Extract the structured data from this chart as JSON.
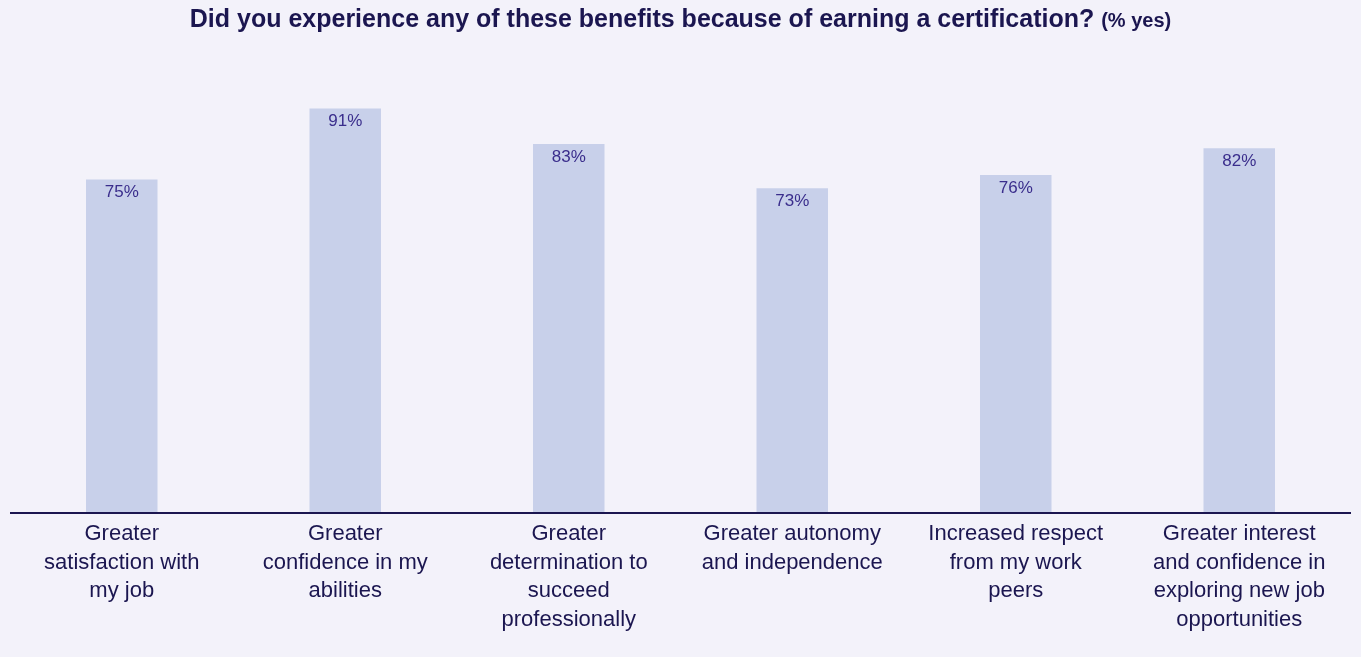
{
  "chart_data": {
    "type": "bar",
    "title": "Did you experience any of these benefits because of earning a certification?",
    "subtitle": "(% yes)",
    "categories": [
      "Greater satisfaction with my job",
      "Greater confidence in my abilities",
      "Greater determination to succeed professionally",
      "Greater autonomy and independence",
      "Increased respect from my work peers",
      "Greater interest and confidence in exploring new job opportunities"
    ],
    "values": [
      75,
      91,
      83,
      73,
      76,
      82
    ],
    "value_labels": [
      "75%",
      "91%",
      "83%",
      "73%",
      "76%",
      "82%"
    ],
    "color": "#c8d0ea",
    "tick_labels": "x",
    "grid": false,
    "legend": false
  }
}
